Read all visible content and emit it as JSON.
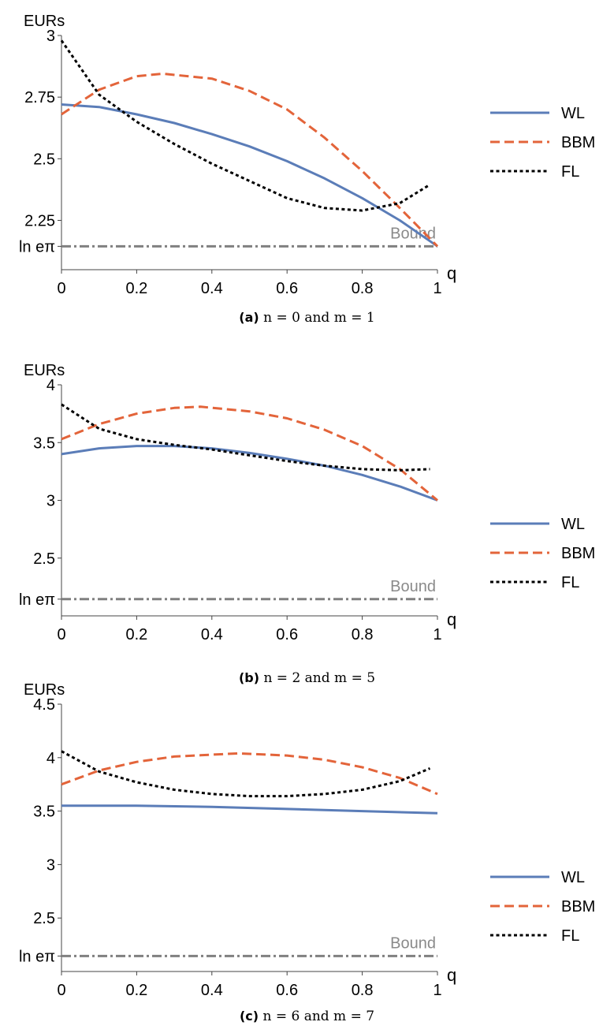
{
  "chart_data": [
    {
      "type": "line",
      "ylabel": "EURs",
      "xlabel": "q",
      "xlim": [
        0,
        1
      ],
      "ylim": [
        2.05,
        3.0
      ],
      "x_ticks": [
        "0",
        "0.2",
        "0.4",
        "0.6",
        "0.8",
        "1"
      ],
      "y_ticks": [
        {
          "value": 3.0,
          "label": "3"
        },
        {
          "value": 2.75,
          "label": "2.75"
        },
        {
          "value": 2.5,
          "label": "2.5"
        },
        {
          "value": 2.25,
          "label": "2.25"
        },
        {
          "value": 2.1447,
          "label": "ln eπ"
        }
      ],
      "bound": {
        "label": "Bound",
        "value": 2.1447
      },
      "series": [
        {
          "name": "WL",
          "style": "solid",
          "color": "#5b7db8",
          "x": [
            0,
            0.1,
            0.2,
            0.3,
            0.4,
            0.5,
            0.6,
            0.7,
            0.8,
            0.9,
            1.0
          ],
          "y": [
            2.72,
            2.71,
            2.68,
            2.645,
            2.6,
            2.55,
            2.49,
            2.42,
            2.34,
            2.25,
            2.145
          ]
        },
        {
          "name": "BBM",
          "style": "dashed",
          "color": "#e3643a",
          "x": [
            0,
            0.1,
            0.2,
            0.27,
            0.4,
            0.5,
            0.6,
            0.7,
            0.8,
            0.9,
            1.0
          ],
          "y": [
            2.68,
            2.78,
            2.835,
            2.845,
            2.825,
            2.775,
            2.7,
            2.585,
            2.45,
            2.3,
            2.145
          ]
        },
        {
          "name": "FL",
          "style": "dotted",
          "color": "#000000",
          "x": [
            0,
            0.1,
            0.2,
            0.3,
            0.4,
            0.5,
            0.6,
            0.7,
            0.8,
            0.9,
            0.98
          ],
          "y": [
            2.98,
            2.76,
            2.65,
            2.56,
            2.48,
            2.41,
            2.34,
            2.3,
            2.29,
            2.32,
            2.395
          ]
        }
      ]
    },
    {
      "type": "line",
      "ylabel": "EURs",
      "xlabel": "q",
      "xlim": [
        0,
        1
      ],
      "ylim": [
        2.0,
        4.0
      ],
      "x_ticks": [
        "0",
        "0.2",
        "0.4",
        "0.6",
        "0.8",
        "1"
      ],
      "y_ticks": [
        {
          "value": 4.0,
          "label": "4"
        },
        {
          "value": 3.5,
          "label": "3.5"
        },
        {
          "value": 3.0,
          "label": "3"
        },
        {
          "value": 2.5,
          "label": "2.5"
        },
        {
          "value": 2.1447,
          "label": "ln eπ"
        }
      ],
      "bound": {
        "label": "Bound",
        "value": 2.1447
      },
      "series": [
        {
          "name": "WL",
          "style": "solid",
          "color": "#5b7db8",
          "x": [
            0,
            0.1,
            0.2,
            0.3,
            0.4,
            0.5,
            0.6,
            0.7,
            0.8,
            0.9,
            1.0
          ],
          "y": [
            3.4,
            3.45,
            3.47,
            3.47,
            3.45,
            3.41,
            3.36,
            3.3,
            3.22,
            3.12,
            3.0
          ]
        },
        {
          "name": "BBM",
          "style": "dashed",
          "color": "#e3643a",
          "x": [
            0,
            0.1,
            0.2,
            0.3,
            0.37,
            0.5,
            0.6,
            0.7,
            0.8,
            0.9,
            1.0
          ],
          "y": [
            3.53,
            3.66,
            3.75,
            3.8,
            3.81,
            3.77,
            3.71,
            3.61,
            3.47,
            3.27,
            3.0
          ]
        },
        {
          "name": "FL",
          "style": "dotted",
          "color": "#000000",
          "x": [
            0,
            0.1,
            0.2,
            0.3,
            0.4,
            0.5,
            0.6,
            0.7,
            0.8,
            0.9,
            0.98
          ],
          "y": [
            3.83,
            3.62,
            3.53,
            3.48,
            3.44,
            3.39,
            3.34,
            3.3,
            3.27,
            3.26,
            3.27
          ]
        }
      ]
    },
    {
      "type": "line",
      "ylabel": "EURs",
      "xlabel": "q",
      "xlim": [
        0,
        1
      ],
      "ylim": [
        2.0,
        4.5
      ],
      "x_ticks": [
        "0",
        "0.2",
        "0.4",
        "0.6",
        "0.8",
        "1"
      ],
      "y_ticks": [
        {
          "value": 4.5,
          "label": "4.5"
        },
        {
          "value": 4.0,
          "label": "4"
        },
        {
          "value": 3.5,
          "label": "3.5"
        },
        {
          "value": 3.0,
          "label": "3"
        },
        {
          "value": 2.5,
          "label": "2.5"
        },
        {
          "value": 2.1447,
          "label": "ln eπ"
        }
      ],
      "bound": {
        "label": "Bound",
        "value": 2.1447
      },
      "series": [
        {
          "name": "WL",
          "style": "solid",
          "color": "#5b7db8",
          "x": [
            0,
            0.2,
            0.4,
            0.6,
            0.8,
            1.0
          ],
          "y": [
            3.55,
            3.55,
            3.54,
            3.52,
            3.5,
            3.48
          ]
        },
        {
          "name": "BBM",
          "style": "dashed",
          "color": "#e3643a",
          "x": [
            0,
            0.1,
            0.2,
            0.3,
            0.47,
            0.6,
            0.7,
            0.8,
            0.9,
            1.0
          ],
          "y": [
            3.75,
            3.88,
            3.96,
            4.01,
            4.04,
            4.02,
            3.98,
            3.91,
            3.81,
            3.66
          ]
        },
        {
          "name": "FL",
          "style": "dotted",
          "color": "#000000",
          "x": [
            0,
            0.1,
            0.2,
            0.3,
            0.4,
            0.5,
            0.6,
            0.7,
            0.8,
            0.9,
            0.98
          ],
          "y": [
            4.06,
            3.87,
            3.77,
            3.7,
            3.66,
            3.64,
            3.64,
            3.66,
            3.7,
            3.78,
            3.9
          ]
        }
      ]
    }
  ],
  "captions": [
    {
      "tag": "(a)",
      "text": "n = 0 and m = 1"
    },
    {
      "tag": "(b)",
      "text": "n = 2 and m = 5"
    },
    {
      "tag": "(c)",
      "text": "n = 6 and m = 7"
    }
  ]
}
